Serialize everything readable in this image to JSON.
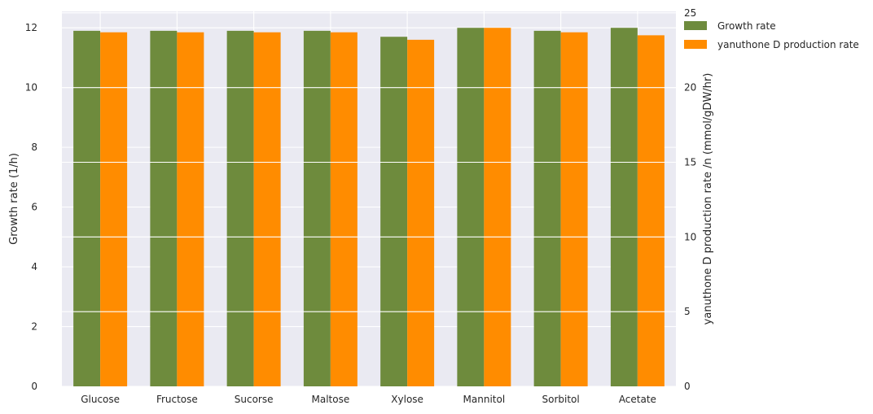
{
  "chart_data": {
    "type": "bar",
    "categories": [
      "Glucose",
      "Fructose",
      "Sucorse",
      "Maltose",
      "Xylose",
      "Mannitol",
      "Sorbitol",
      "Acetate"
    ],
    "series": [
      {
        "name": "Growth rate",
        "axis": "left",
        "color": "#6e8b3d",
        "values": [
          11.9,
          11.9,
          11.9,
          11.9,
          11.7,
          12.0,
          11.9,
          12.0
        ]
      },
      {
        "name": "yanuthone D production rate",
        "axis": "right",
        "color": "#ff8c00",
        "values": [
          23.7,
          23.7,
          23.7,
          23.7,
          23.2,
          24.0,
          23.7,
          23.5
        ]
      }
    ],
    "ylabel": "Growth rate (1/h)",
    "ylabel_right": "yanuthone D production rate /n (mmol/gDW/hr)",
    "ylim": [
      0,
      12.55
    ],
    "ylim_right": [
      0,
      25.1
    ],
    "yticks": [
      0,
      2,
      4,
      6,
      8,
      10,
      12
    ],
    "yticks_right": [
      0,
      5,
      10,
      15,
      20,
      25
    ],
    "grid": true,
    "legend_position": "outside-top-right",
    "background_color": "#eaeaf2"
  }
}
